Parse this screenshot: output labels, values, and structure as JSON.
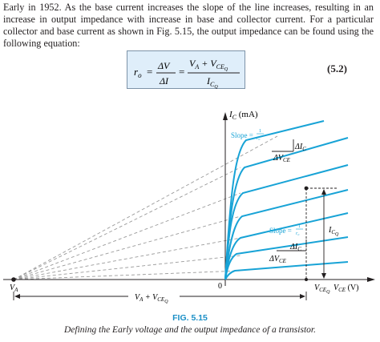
{
  "paragraph": "Early in 1952. As the base current increases the slope of the line increases, resulting in an increase in output impedance with increase in base and collector current. For a particular collector and base current as shown in Fig. 5.15, the output impedance can be found using the following equation:",
  "equation": {
    "lhs": "r",
    "lhs_sub": "o",
    "eq1": "=",
    "frac1_num": "ΔV",
    "frac1_den": "ΔI",
    "eq2": "=",
    "frac2_num_a": "V",
    "frac2_num_a_sub": "A",
    "frac2_num_plus": " + V",
    "frac2_num_b_sub": "CE",
    "frac2_num_b_subsub": "Q",
    "frac2_den": "I",
    "frac2_den_sub": "C",
    "frac2_den_subsub": "Q",
    "number": "(5.2)"
  },
  "figure": {
    "y_axis_label": "I",
    "y_axis_label_sub": "C",
    "y_axis_unit": " (mA)",
    "x_axis_label": "V",
    "x_axis_label_sub": "CE",
    "x_axis_unit": " (V)",
    "origin": "0",
    "va_label": "V",
    "va_sub": "A",
    "span_label_a": "V",
    "span_label_a_sub": "A",
    "span_label_plus": " + V",
    "span_label_b_sub": "CE",
    "span_label_b_subsub": "Q",
    "vceq_label": "V",
    "vceq_sub": "CE",
    "vceq_subsub": "Q",
    "icq_label": "I",
    "icq_sub": "C",
    "icq_subsub": "Q",
    "slope1_text": "Slope = ",
    "slope2_text": "Slope = ",
    "slope_frac_num": "1",
    "slope_frac_den": "r",
    "slope_frac_den_sub": "o",
    "delta_ic_1": "ΔI",
    "delta_ic_1_sub": "C",
    "delta_vce_1": "ΔV",
    "delta_vce_1_sub": "CE",
    "delta_ic_2": "ΔI",
    "delta_ic_2_sub": "C",
    "delta_vce_2": "ΔV",
    "delta_vce_2_sub": "CE",
    "fig_label": "FIG. 5.15",
    "caption": "Defining the Early voltage and the output impedance of a transistor.",
    "colors": {
      "curve": "#18a3d6",
      "dashed": "#9a9a9a",
      "axis": "#231f20",
      "box": "#dfeefa",
      "fig_label": "#1b8fc6"
    }
  }
}
